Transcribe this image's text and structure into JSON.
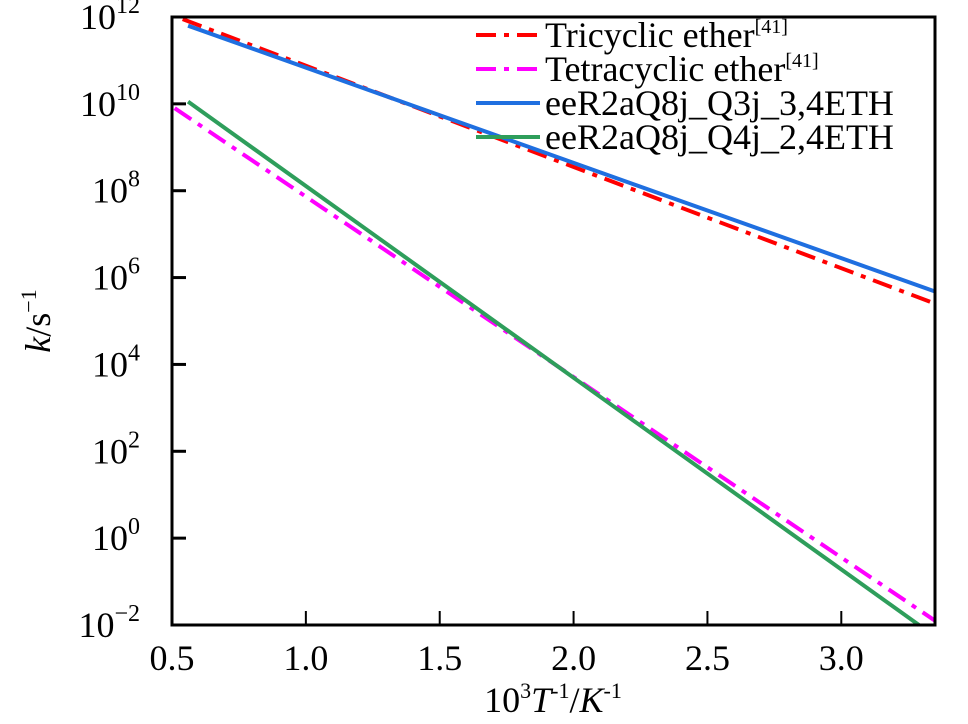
{
  "chart_data": {
    "type": "line",
    "xlabel": {
      "base": "10",
      "exp": "3",
      "var": "T",
      "varexp": "-1",
      "sep": "/",
      "unit": "K",
      "unitexp": "-1"
    },
    "ylabel": {
      "var": "k",
      "sep": "/s",
      "exp": "−1"
    },
    "xlim": [
      0.5,
      3.35
    ],
    "ylim_log10": [
      -2,
      12
    ],
    "yscale": "log",
    "xticks": [
      "0.5",
      "1.0",
      "1.5",
      "2.0",
      "2.5",
      "3.0"
    ],
    "xtick_values": [
      0.5,
      1.0,
      1.5,
      2.0,
      2.5,
      3.0
    ],
    "yticks": [
      {
        "base": "10",
        "exp": "12"
      },
      {
        "base": "10",
        "exp": "10"
      },
      {
        "base": "10",
        "exp": "8"
      },
      {
        "base": "10",
        "exp": "6"
      },
      {
        "base": "10",
        "exp": "4"
      },
      {
        "base": "10",
        "exp": "2"
      },
      {
        "base": "10",
        "exp": "0"
      },
      {
        "base": "10",
        "exp": "−2"
      }
    ],
    "ytick_log10": [
      12,
      10,
      8,
      6,
      4,
      2,
      0,
      -2
    ],
    "legend_position": "top-right",
    "grid": false,
    "series": [
      {
        "name": "Tricyclic ether",
        "ref": "[41]",
        "color": "#ff0000",
        "style": "dashdot",
        "x": [
          0.54,
          3.35
        ],
        "log10_k": [
          11.95,
          5.4
        ]
      },
      {
        "name": "Tetracyclic ether",
        "ref": "[41]",
        "color": "#ff00ff",
        "style": "dashdot",
        "x": [
          0.51,
          3.35
        ],
        "log10_k": [
          9.9,
          -1.9
        ]
      },
      {
        "name": "eeR2aQ8j_Q3j_3,4ETH",
        "ref": "",
        "color": "#1f6fe0",
        "style": "solid",
        "x": [
          0.56,
          3.35
        ],
        "log10_k": [
          11.8,
          5.68
        ]
      },
      {
        "name": "eeR2aQ8j_Q4j_2,4ETH",
        "ref": "",
        "color": "#2e9e5b",
        "style": "solid",
        "x": [
          0.56,
          3.29
        ],
        "log10_k": [
          10.05,
          -2.0
        ]
      }
    ]
  }
}
